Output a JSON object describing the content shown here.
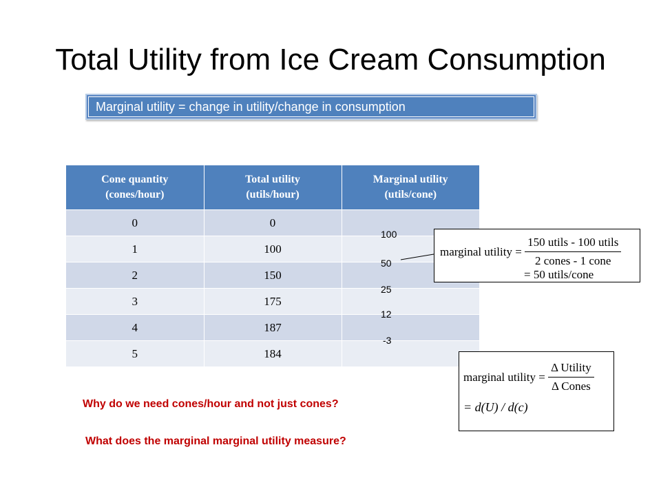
{
  "slide": {
    "title": "Total Utility from Ice Cream Consumption",
    "banner": "Marginal utility = change in utility/change in consumption"
  },
  "table": {
    "headers": [
      [
        "Cone quantity",
        "(cones/hour)"
      ],
      [
        "Total utility",
        "(utils/hour)"
      ],
      [
        "Marginal utility",
        "(utils/cone)"
      ]
    ],
    "rows": [
      {
        "qty": "0",
        "total": "0"
      },
      {
        "qty": "1",
        "total": "100"
      },
      {
        "qty": "2",
        "total": "150"
      },
      {
        "qty": "3",
        "total": "175"
      },
      {
        "qty": "4",
        "total": "187"
      },
      {
        "qty": "5",
        "total": "184"
      }
    ],
    "marginal_values": [
      "100",
      "50",
      "25",
      "12",
      "-3"
    ]
  },
  "equation1": {
    "label": "marginal utility =",
    "numerator": "150 utils - 100 utils",
    "denominator": "2 cones - 1 cone",
    "result": "= 50 utils/cone"
  },
  "equation2": {
    "label": "marginal utility =",
    "numerator": "Δ Utility",
    "denominator": "Δ Cones",
    "derivative": "= d(U) / d(c)"
  },
  "questions": {
    "q1": "Why do we need cones/hour and not just cones?",
    "q2": "What does the marginal marginal utility measure?"
  }
}
